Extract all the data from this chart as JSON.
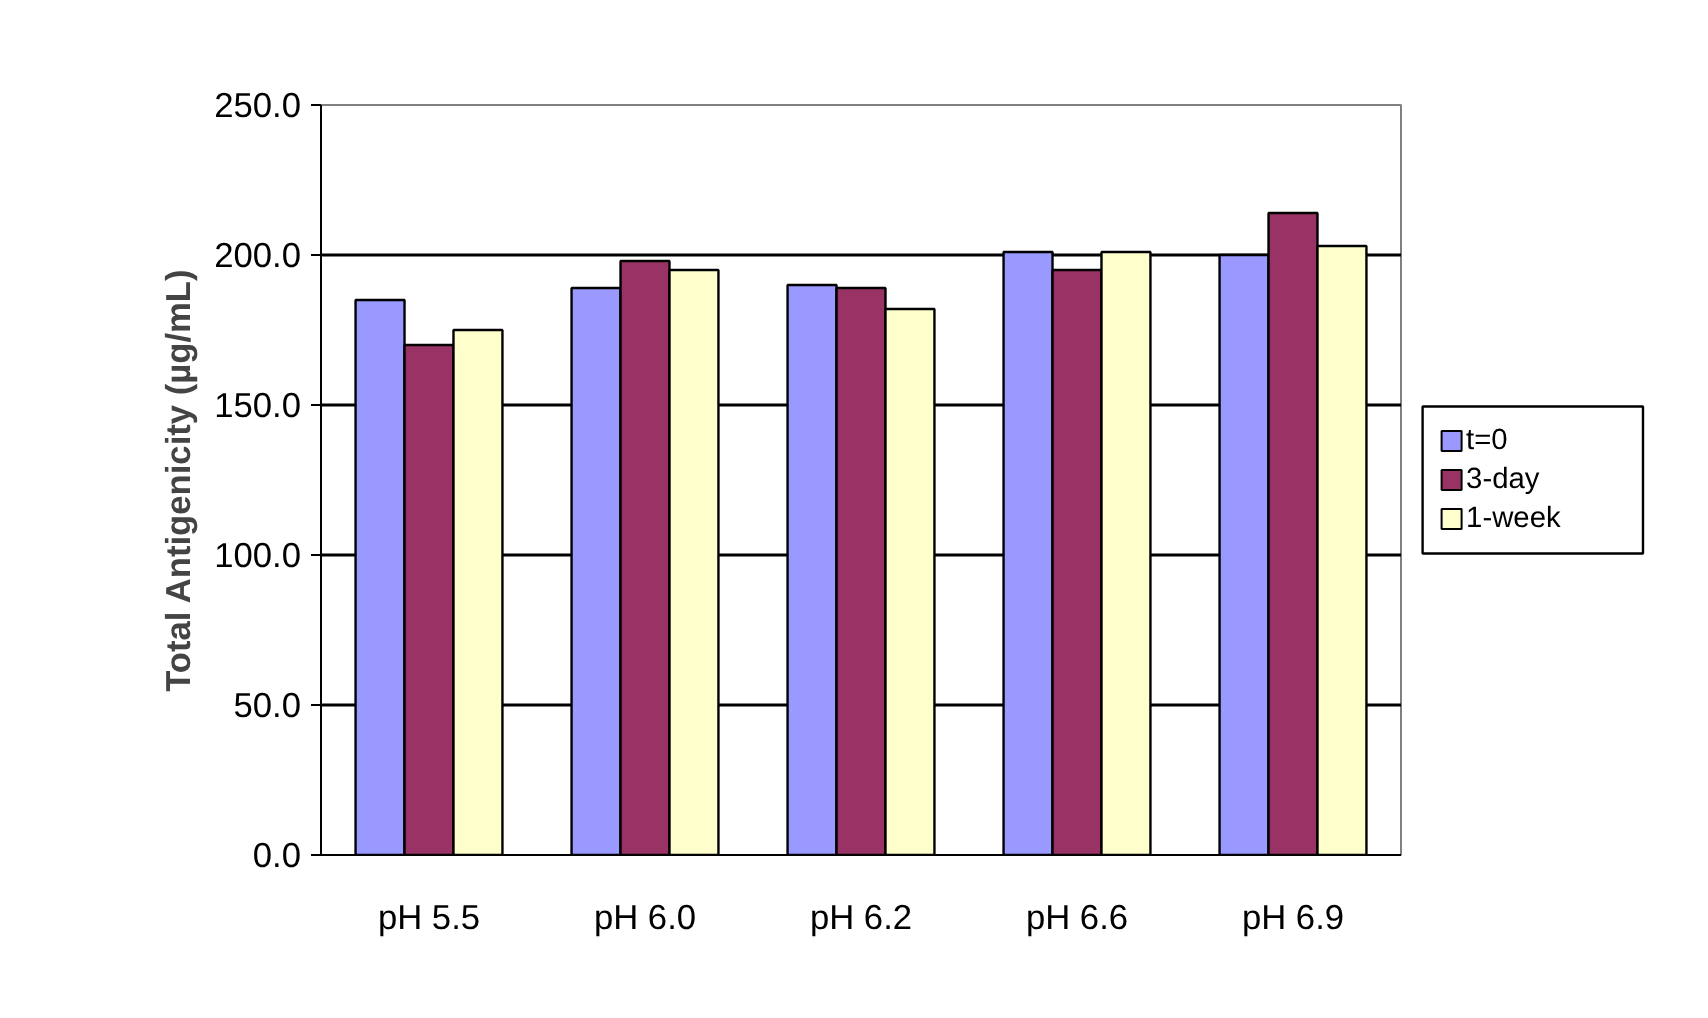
{
  "chart_data": {
    "type": "bar",
    "ylabel": "Total Antigenicity (µg/mL)",
    "categories": [
      "pH 5.5",
      "pH 6.0",
      "pH 6.2",
      "pH 6.6",
      "pH 6.9"
    ],
    "series": [
      {
        "name": "t=0",
        "color": "#9999ff",
        "values": [
          185,
          189,
          190,
          201,
          200
        ]
      },
      {
        "name": "3-day",
        "color": "#993366",
        "values": [
          170,
          198,
          189,
          195,
          214
        ]
      },
      {
        "name": "1-week",
        "color": "#ffffcc",
        "values": [
          175,
          195,
          182,
          201,
          203
        ]
      }
    ],
    "ylim": [
      0,
      250
    ],
    "yticks": [
      {
        "value": 0,
        "label": "0.0"
      },
      {
        "value": 50,
        "label": "50.0"
      },
      {
        "value": 100,
        "label": "100.0"
      },
      {
        "value": 150,
        "label": "150.0"
      },
      {
        "value": 200,
        "label": "200.0"
      },
      {
        "value": 250,
        "label": "250.0"
      }
    ],
    "grid": "y",
    "legend": "right"
  }
}
